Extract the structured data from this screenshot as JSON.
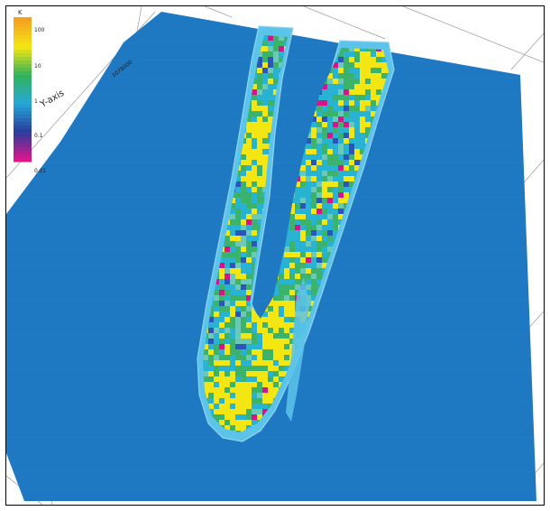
{
  "colorbar": {
    "title": "K",
    "tick_labels": [
      "100",
      "10",
      "1",
      "0.1",
      "0.01"
    ],
    "colors": [
      "#f4a020",
      "#f3e613",
      "#2fb35c",
      "#27a7d9",
      "#2a3c9c",
      "#e0148b"
    ]
  },
  "axis_label": "Y-axis",
  "coordinate_label": "1079000",
  "palette": {
    "background": "#1f78c2",
    "grid_line": "#9a9a9a",
    "channel_edge": "#5cc3ea",
    "channel_cyan": "#29b3d2",
    "channel_green": "#3bb36a",
    "channel_yellow": "#f3e613",
    "channel_magenta": "#d4148b",
    "channel_blue": "#2a56b8"
  }
}
